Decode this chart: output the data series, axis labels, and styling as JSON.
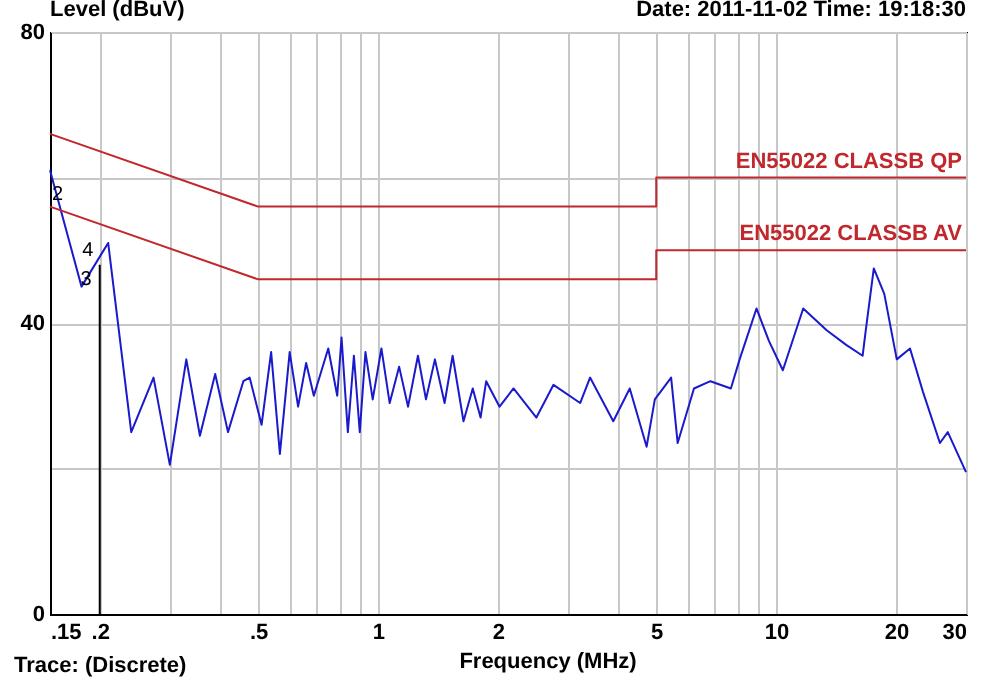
{
  "chart_data": {
    "type": "line",
    "ylabel": "Level (dBuV)",
    "xlabel": "Frequency (MHz)",
    "annotations": [
      "Date: 2011-11-02  Time: 19:18:30",
      "Trace: (Discrete)",
      {
        "text": "2",
        "x": 0.15,
        "y": 61
      },
      {
        "text": "4",
        "x": 0.202,
        "y": 49.5
      },
      {
        "text": "3",
        "x": 0.2,
        "y": 48
      }
    ],
    "log": "x",
    "grid": true,
    "xlim": [
      0.15,
      30
    ],
    "ylim": [
      0,
      80
    ],
    "xticks": [
      {
        "value": 0.15,
        "label": ".15"
      },
      {
        "value": 0.2,
        "label": ".2"
      },
      {
        "value": 0.3,
        "label": null
      },
      {
        "value": 0.4,
        "label": null
      },
      {
        "value": 0.5,
        "label": ".5"
      },
      {
        "value": 0.6,
        "label": null
      },
      {
        "value": 0.7,
        "label": null
      },
      {
        "value": 0.8,
        "label": null
      },
      {
        "value": 0.9,
        "label": null
      },
      1,
      2,
      {
        "value": 3,
        "label": null
      },
      {
        "value": 4,
        "label": null
      },
      5,
      {
        "value": 6,
        "label": null
      },
      {
        "value": 7,
        "label": null
      },
      {
        "value": 8,
        "label": null
      },
      {
        "value": 9,
        "label": null
      },
      10,
      20,
      30
    ],
    "yticks": [
      0,
      {
        "value": 20,
        "label": null
      },
      40,
      {
        "value": 60,
        "label": null
      },
      80
    ],
    "series": [
      {
        "color": "#1a1acc",
        "line_style": "solid",
        "x": [
          0.15,
          0.18,
          0.202,
          0.21,
          0.24,
          0.273,
          0.3,
          0.33,
          0.357,
          0.39,
          0.42,
          0.459,
          0.476,
          0.51,
          0.539,
          0.567,
          0.6,
          0.63,
          0.66,
          0.69,
          0.75,
          0.79,
          0.81,
          0.84,
          0.87,
          0.9,
          0.93,
          0.97,
          1.02,
          1.07,
          1.13,
          1.19,
          1.26,
          1.32,
          1.39,
          1.47,
          1.54,
          1.64,
          1.73,
          1.81,
          1.87,
          2.02,
          2.19,
          2.5,
          2.76,
          3.22,
          3.41,
          3.9,
          4.29,
          4.73,
          4.96,
          5.45,
          5.66,
          6.22,
          6.84,
          7.7,
          8.1,
          8.93,
          9.6,
          10.4,
          11.7,
          13.4,
          15.0,
          16.5,
          16.8,
          17.6,
          18.7,
          20.1,
          21.7,
          23.4,
          25.8,
          27.0,
          30
        ],
        "values": [
          61,
          45,
          49.5,
          51,
          25,
          32.5,
          20.5,
          35,
          24.5,
          33,
          25,
          32,
          32.5,
          26,
          36,
          22,
          36,
          28.5,
          34.5,
          30,
          36.5,
          30,
          38,
          25,
          35.5,
          25,
          36,
          29.5,
          36.5,
          29,
          34,
          28.5,
          35.5,
          29.5,
          35,
          29,
          35.5,
          26.5,
          31,
          27,
          32,
          28.5,
          31,
          27,
          31.5,
          29,
          32.5,
          26.5,
          31,
          23,
          29.5,
          32.5,
          23.5,
          31,
          32,
          31,
          35,
          42,
          37.5,
          33.5,
          42,
          39,
          37,
          35.5,
          39,
          47.5,
          44,
          35,
          36.5,
          30.5,
          23.5,
          25,
          19.5
        ]
      },
      {
        "name": "EN55022 CLASSB QP",
        "color": "#c0282d",
        "x": [
          0.15,
          0.5,
          5,
          5,
          30
        ],
        "values": [
          66,
          56,
          56,
          60,
          60
        ]
      },
      {
        "name": "EN55022 CLASSB AV",
        "color": "#c0282d",
        "x": [
          0.15,
          0.5,
          5,
          5,
          30
        ],
        "values": [
          56,
          46,
          46,
          50,
          50
        ]
      },
      {
        "color": "#000000",
        "x": [
          0.2,
          0.2
        ],
        "values": [
          0,
          48
        ]
      }
    ]
  }
}
